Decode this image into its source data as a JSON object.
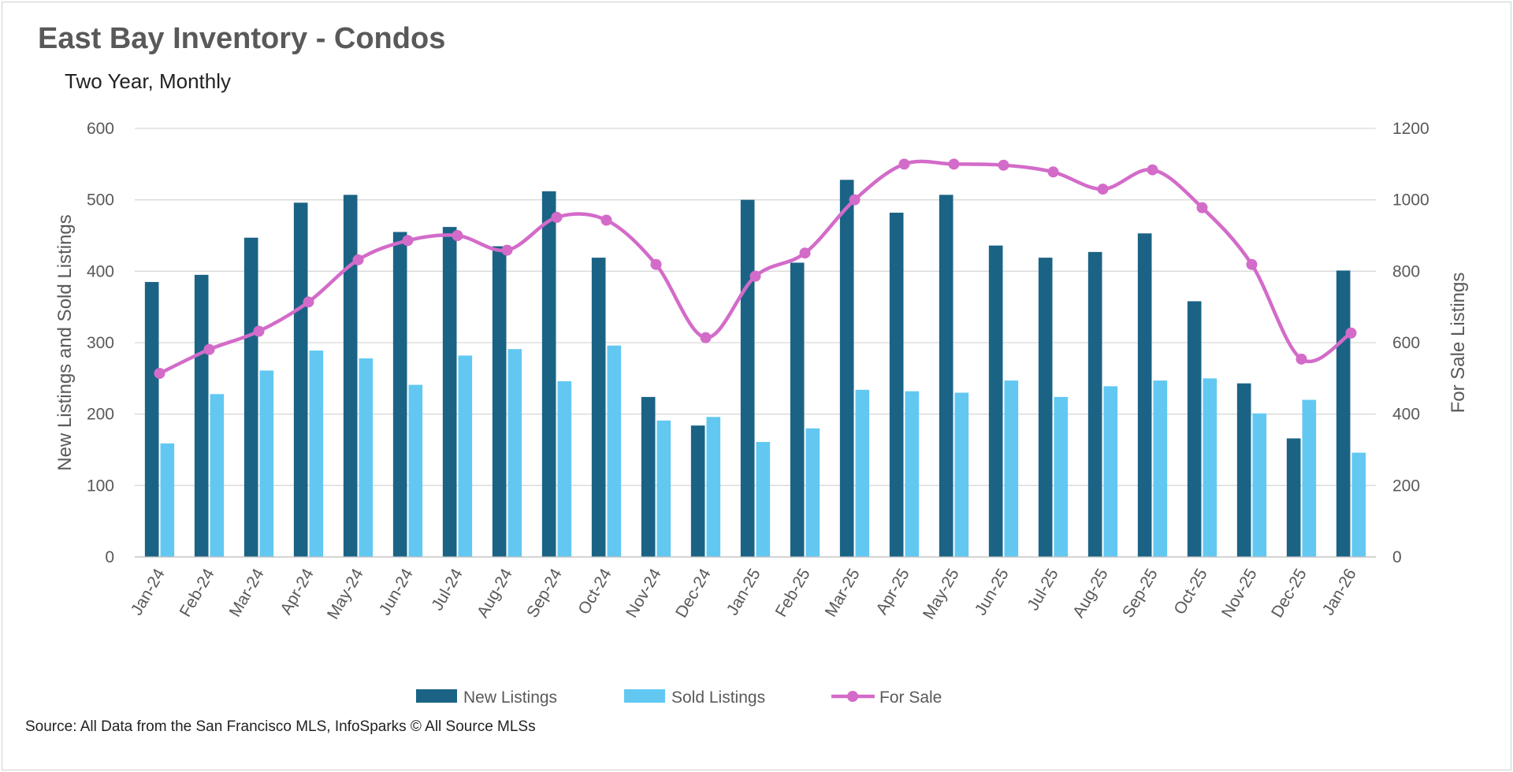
{
  "title": "East Bay Inventory - Condos",
  "subtitle": "Two Year, Monthly",
  "source": "Source: All Data from the San Francisco MLS, InfoSparks © All Source MLSs",
  "chart_data": {
    "type": "bar+line",
    "title": "East Bay Inventory - Condos",
    "subtitle": "Two Year, Monthly",
    "categories": [
      "Jan-24",
      "Feb-24",
      "Mar-24",
      "Apr-24",
      "May-24",
      "Jun-24",
      "Jul-24",
      "Aug-24",
      "Sep-24",
      "Oct-24",
      "Nov-24",
      "Dec-24",
      "Jan-25",
      "Feb-25",
      "Mar-25",
      "Apr-25",
      "May-25",
      "Jun-25",
      "Jul-25",
      "Aug-25",
      "Sep-25",
      "Oct-25",
      "Nov-25",
      "Dec-25",
      "Jan-26"
    ],
    "ylabel": "New Listings and Sold Listings",
    "y2label": "For Sale Listings",
    "ylim": [
      0,
      600
    ],
    "y2lim": [
      0,
      1200
    ],
    "yticks": [
      0,
      100,
      200,
      300,
      400,
      500,
      600
    ],
    "y2ticks": [
      0,
      200,
      400,
      600,
      800,
      1000,
      1200
    ],
    "grid": true,
    "legend": "bottom",
    "series": [
      {
        "name": "New Listings",
        "type": "bar",
        "axis": "left",
        "color": "#1b6385",
        "values": [
          385,
          395,
          447,
          496,
          507,
          455,
          462,
          435,
          512,
          419,
          224,
          184,
          500,
          412,
          528,
          482,
          507,
          436,
          419,
          427,
          453,
          358,
          243,
          166,
          401
        ]
      },
      {
        "name": "Sold Listings",
        "type": "bar",
        "axis": "left",
        "color": "#62c8f2",
        "values": [
          159,
          228,
          261,
          289,
          278,
          241,
          282,
          291,
          246,
          296,
          191,
          196,
          161,
          180,
          234,
          232,
          230,
          247,
          224,
          239,
          247,
          250,
          201,
          220,
          146
        ]
      },
      {
        "name": "For Sale",
        "type": "line",
        "axis": "right",
        "color": "#d36bc9",
        "values": [
          514,
          581,
          632,
          714,
          832,
          886,
          900,
          859,
          951,
          943,
          819,
          614,
          786,
          851,
          1000,
          1100,
          1100,
          1097,
          1078,
          1030,
          1084,
          978,
          819,
          554,
          627
        ]
      }
    ]
  }
}
